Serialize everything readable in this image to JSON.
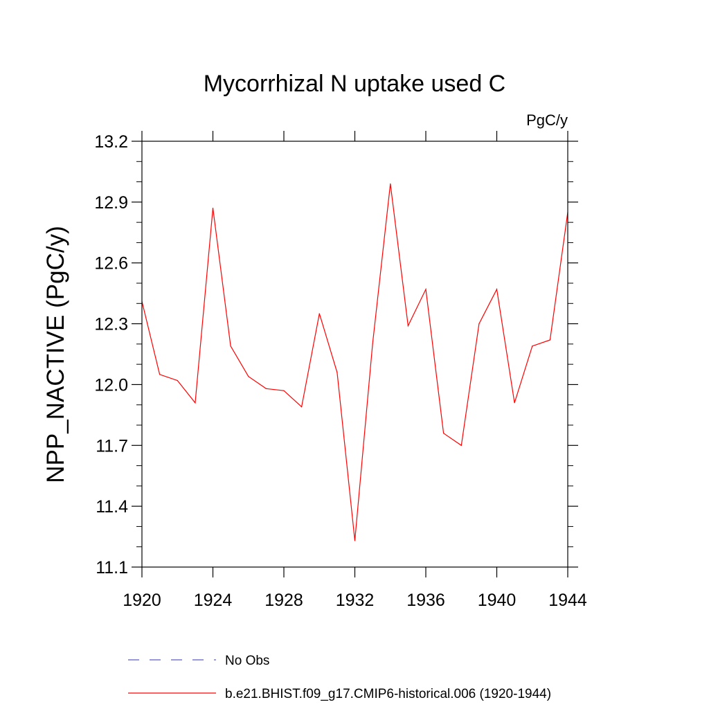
{
  "chart_data": {
    "type": "line",
    "title": "Mycorrhizal N uptake used C",
    "units_label": "PgC/y",
    "ylabel": "NPP_NACTIVE  (PgC/y)",
    "xlabel": "",
    "xlim": [
      1920,
      1944
    ],
    "ylim": [
      11.1,
      13.2
    ],
    "x_ticks": [
      1920,
      1924,
      1928,
      1932,
      1936,
      1940,
      1944
    ],
    "x_tick_labels": [
      "1920",
      "1924",
      "1928",
      "1932",
      "1936",
      "1940",
      "1944"
    ],
    "y_ticks": [
      11.1,
      11.4,
      11.7,
      12.0,
      12.3,
      12.6,
      12.9,
      13.2
    ],
    "y_tick_labels": [
      "11.1",
      "11.4",
      "11.7",
      "12.0",
      "12.3",
      "12.6",
      "12.9",
      "13.2"
    ],
    "grid": false,
    "legend_position": "bottom",
    "series": [
      {
        "name": "b.e21.BHIST.f09_g17.CMIP6-historical.006 (1920-1944)",
        "color": "#ff0000",
        "style": "solid",
        "x": [
          1920,
          1921,
          1922,
          1923,
          1924,
          1925,
          1926,
          1927,
          1928,
          1929,
          1930,
          1931,
          1932,
          1933,
          1934,
          1935,
          1936,
          1937,
          1938,
          1939,
          1940,
          1941,
          1942,
          1943,
          1944
        ],
        "values": [
          12.41,
          12.05,
          12.02,
          11.91,
          12.87,
          12.19,
          12.04,
          11.98,
          11.97,
          11.89,
          12.35,
          12.06,
          11.23,
          12.2,
          12.99,
          12.29,
          12.47,
          11.76,
          11.7,
          12.3,
          12.47,
          11.91,
          12.19,
          12.22,
          12.85
        ]
      }
    ],
    "legend": [
      {
        "label": "No Obs",
        "color": "#5a5ac8",
        "style": "dashed"
      },
      {
        "label": "b.e21.BHIST.f09_g17.CMIP6-historical.006 (1920-1944)",
        "color": "#ff0000",
        "style": "solid"
      }
    ]
  }
}
